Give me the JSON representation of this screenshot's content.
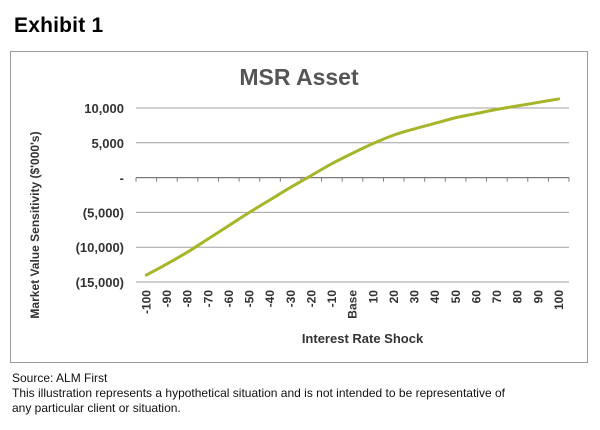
{
  "exhibit": {
    "title": "Exhibit 1"
  },
  "chart_data": {
    "type": "line",
    "title": "MSR Asset",
    "xlabel": "Interest Rate Shock",
    "ylabel": "Market Value Sensitivity ($'000's)",
    "categories": [
      "-100",
      "-90",
      "-80",
      "-70",
      "-60",
      "-50",
      "-40",
      "-30",
      "-20",
      "-10",
      "Base",
      "10",
      "20",
      "30",
      "40",
      "50",
      "60",
      "70",
      "80",
      "90",
      "100"
    ],
    "series": [
      {
        "values": [
          -14000,
          -12400,
          -10700,
          -8800,
          -6900,
          -5000,
          -3200,
          -1400,
          300,
          2000,
          3500,
          4900,
          6100,
          7000,
          7800,
          8600,
          9200,
          9800,
          10300,
          10800,
          11300
        ]
      }
    ],
    "yticks": [
      10000,
      5000,
      0,
      -5000,
      -10000,
      -15000
    ],
    "ytick_labels": [
      "10,000",
      "5,000",
      "-",
      "(5,000)",
      "(10,000)",
      "(15,000)"
    ],
    "ylim": [
      -15000,
      10000
    ],
    "grid": "horizontal",
    "line_color": "#a6b52a",
    "grid_color": "#a0a0a0"
  },
  "footnote": {
    "source": "Source: ALM First",
    "disclaimer_line1": "This illustration represents a hypothetical situation and is not intended to be representative of",
    "disclaimer_line2": "any particular client or situation."
  }
}
